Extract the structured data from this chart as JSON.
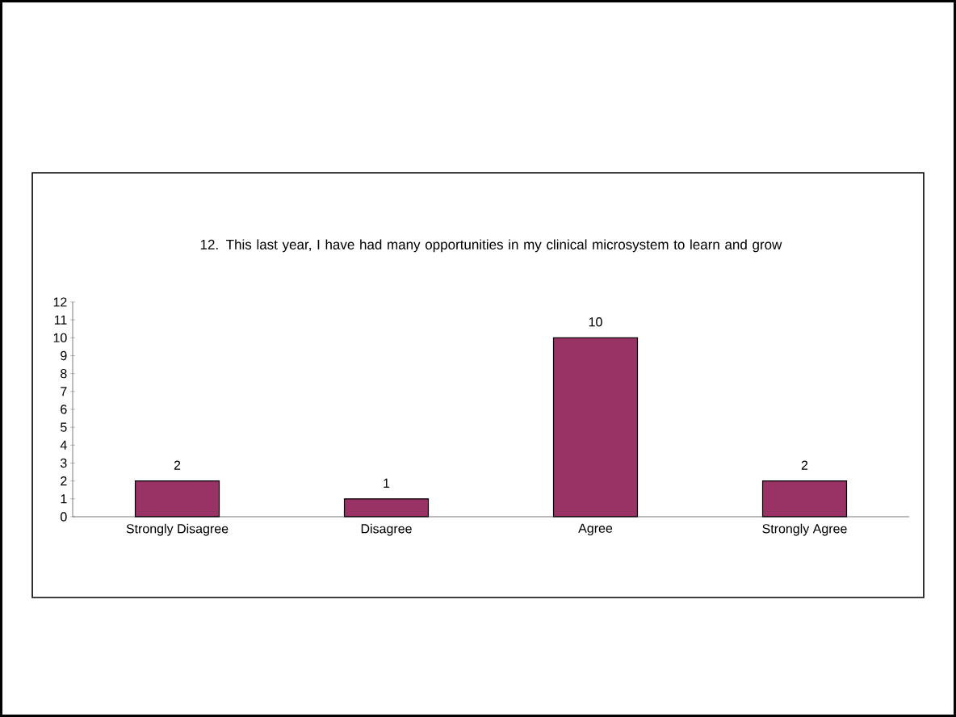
{
  "chart_data": {
    "type": "bar",
    "title": "12. This last year, I have had many opportunities in my clinical microsystem to learn and grow",
    "categories": [
      "Strongly Disagree",
      "Disagree",
      "Agree",
      "Strongly Agree"
    ],
    "values": [
      2,
      1,
      10,
      2
    ],
    "color": "#993366",
    "ylim": [
      0,
      12
    ],
    "yticks": [
      0,
      1,
      2,
      3,
      4,
      5,
      6,
      7,
      8,
      9,
      10,
      11,
      12
    ],
    "data_labels": true,
    "grid": false
  }
}
